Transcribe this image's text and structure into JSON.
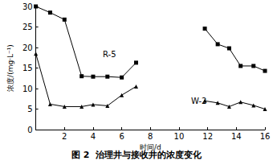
{
  "chart_data": {
    "type": "line",
    "title": "图 2  治理井与接收井的浓度变化",
    "x_label": "时间/d",
    "y_label": "浓度/(mg·L⁻¹)",
    "x": [
      0,
      1,
      2,
      3.2,
      4,
      5,
      6,
      7,
      null,
      11.8,
      12.7,
      13.5,
      14.3,
      15.2,
      16
    ],
    "series": [
      {
        "name": "R-5",
        "color": "#000000",
        "marker": "square",
        "values": [
          30,
          28.5,
          26.8,
          13,
          12.9,
          12.9,
          12.7,
          16.3,
          null,
          24.6,
          20.8,
          19.8,
          15.5,
          15.5,
          14.3
        ]
      },
      {
        "name": "W-2",
        "color": "#000000",
        "marker": "triangle",
        "values": [
          18.5,
          6.2,
          5.6,
          5.6,
          6.1,
          5.8,
          8.4,
          10.5,
          null,
          7,
          6.5,
          5.6,
          6.7,
          5.9,
          5.0
        ]
      }
    ],
    "xlim": [
      0,
      16
    ],
    "xticks": [
      2,
      4,
      6,
      8,
      10,
      12,
      14,
      16
    ],
    "ylim": [
      0,
      30
    ],
    "yticks": [
      0,
      5,
      10,
      15,
      20,
      25,
      30
    ],
    "grid": false
  }
}
